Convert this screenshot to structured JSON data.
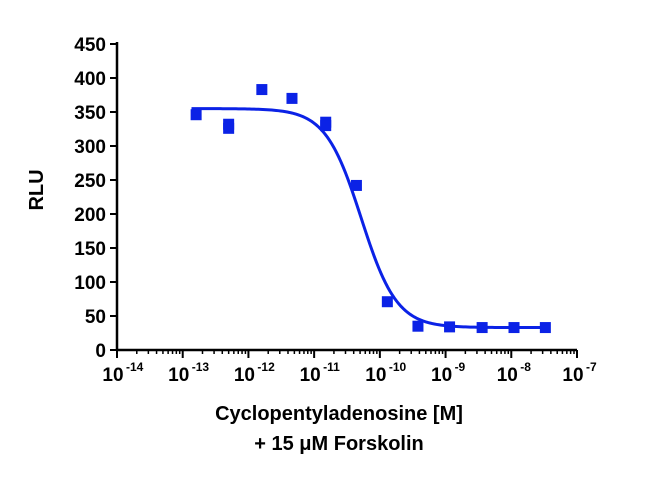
{
  "chart_data": {
    "type": "scatter",
    "xscale": "log",
    "xlim": [
      1e-14,
      1e-07
    ],
    "ylim": [
      0,
      450
    ],
    "y_ticks": [
      0,
      50,
      100,
      150,
      200,
      250,
      300,
      350,
      400,
      450
    ],
    "y_tick_labels": [
      "0",
      "50",
      "100",
      "150",
      "200",
      "250",
      "300",
      "350",
      "400",
      "450"
    ],
    "x_ticks": [
      {
        "base": "10",
        "exp": "-14",
        "value": 1e-14
      },
      {
        "base": "10",
        "exp": "-13",
        "value": 1e-13
      },
      {
        "base": "10",
        "exp": "-12",
        "value": 1e-12
      },
      {
        "base": "10",
        "exp": "-11",
        "value": 1e-11
      },
      {
        "base": "10",
        "exp": "-10",
        "value": 1e-10
      },
      {
        "base": "10",
        "exp": "-9",
        "value": 1e-09
      },
      {
        "base": "10",
        "exp": "-8",
        "value": 1e-08
      },
      {
        "base": "10",
        "exp": "-7",
        "value": 1e-07
      }
    ],
    "xlabel_line1": "Cyclopentyladenosine [M]",
    "xlabel_line2": "+ 15 μM Forskolin",
    "ylabel": "RLU",
    "grid": false,
    "legend": "none",
    "marker_color": "#0b22e6",
    "series": [
      {
        "points": [
          {
            "x": 1.6e-13,
            "y": 346
          },
          {
            "x": 5e-13,
            "y": 332
          },
          {
            "x": 5e-13,
            "y": 326
          },
          {
            "x": 1.6e-12,
            "y": 383
          },
          {
            "x": 4.6e-12,
            "y": 370
          },
          {
            "x": 1.5e-11,
            "y": 335
          },
          {
            "x": 1.5e-11,
            "y": 330
          },
          {
            "x": 4.4e-11,
            "y": 242
          },
          {
            "x": 1.3e-10,
            "y": 71
          },
          {
            "x": 3.8e-10,
            "y": 35
          },
          {
            "x": 1.15e-09,
            "y": 34
          },
          {
            "x": 3.6e-09,
            "y": 33
          },
          {
            "x": 1.1e-08,
            "y": 33
          },
          {
            "x": 3.3e-08,
            "y": 33
          }
        ]
      }
    ],
    "fit": {
      "model": "4PL",
      "top": 355,
      "bottom": 33,
      "ic50": 5.2e-11,
      "hill": -1.6
    }
  }
}
